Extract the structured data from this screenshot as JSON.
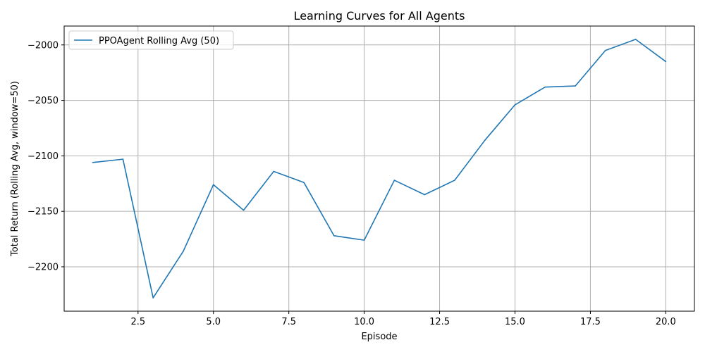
{
  "chart_data": {
    "type": "line",
    "title": "Learning Curves for All Agents",
    "xlabel": "Episode",
    "ylabel": "Total Return (Rolling Avg, window=50)",
    "xlim": [
      0.05,
      20.95
    ],
    "ylim": [
      -2240,
      -1983
    ],
    "xticks": [
      2.5,
      5.0,
      7.5,
      10.0,
      12.5,
      15.0,
      17.5,
      20.0
    ],
    "xtick_labels": [
      "2.5",
      "5.0",
      "7.5",
      "10.0",
      "12.5",
      "15.0",
      "17.5",
      "20.0"
    ],
    "yticks": [
      -2200,
      -2150,
      -2100,
      -2050,
      -2000
    ],
    "ytick_labels": [
      "−2200",
      "−2150",
      "−2100",
      "−2050",
      "−2000"
    ],
    "grid": true,
    "legend_position": "upper-left",
    "series": [
      {
        "name": "PPOAgent Rolling Avg (50)",
        "color": "#1f77b4",
        "x": [
          1,
          2,
          3,
          4,
          5,
          6,
          7,
          8,
          9,
          10,
          11,
          12,
          13,
          14,
          15,
          16,
          17,
          18,
          19,
          20
        ],
        "y": [
          -2106,
          -2103,
          -2228,
          -2186,
          -2126,
          -2149,
          -2114,
          -2124,
          -2172,
          -2176,
          -2122,
          -2135,
          -2122,
          -2086,
          -2054,
          -2038,
          -2037,
          -2005,
          -1995,
          -2015
        ]
      }
    ]
  }
}
